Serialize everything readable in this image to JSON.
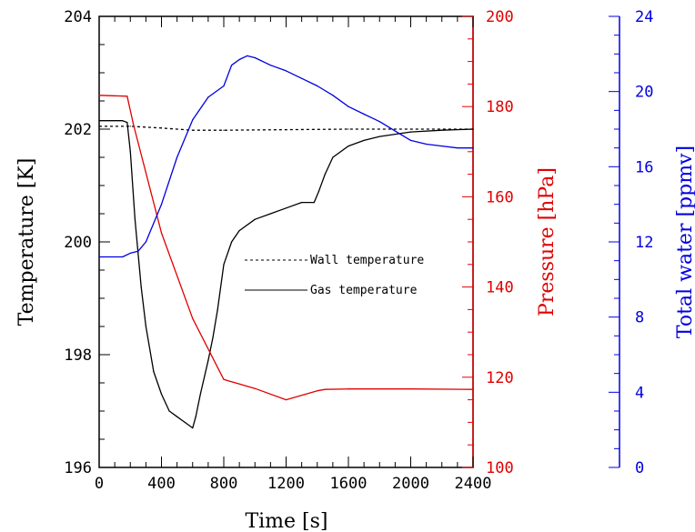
{
  "chart_data": {
    "type": "line",
    "xlabel": "Time [s]",
    "xlim": [
      0,
      2400
    ],
    "x_ticks": [
      "0",
      "400",
      "800",
      "1200",
      "1600",
      "2000",
      "2400"
    ],
    "axes": {
      "temperature": {
        "label": "Temperature [K]",
        "ylim": [
          196,
          204
        ],
        "ticks": [
          "196",
          "198",
          "200",
          "202",
          "204"
        ],
        "color": "#000000"
      },
      "pressure": {
        "label": "Pressure [hPa]",
        "ylim": [
          100,
          200
        ],
        "ticks": [
          "100",
          "120",
          "140",
          "160",
          "180",
          "200"
        ],
        "color": "#e00000"
      },
      "water": {
        "label": "Total water [ppmv]",
        "ylim": [
          0,
          24
        ],
        "ticks": [
          "0",
          "4",
          "8",
          "12",
          "16",
          "20",
          "24"
        ],
        "color": "#0000e0"
      }
    },
    "legend_position": "center",
    "series": [
      {
        "name": "Wall temperature",
        "axis": "temperature",
        "style": "dashed",
        "color": "#000000",
        "x": [
          0,
          200,
          400,
          600,
          800,
          1200,
          1600,
          2000,
          2400
        ],
        "y": [
          202.05,
          202.05,
          202.02,
          201.98,
          201.98,
          201.99,
          202.0,
          202.0,
          202.0
        ]
      },
      {
        "name": "Gas temperature",
        "axis": "temperature",
        "style": "solid",
        "color": "#000000",
        "x": [
          0,
          150,
          180,
          200,
          230,
          270,
          300,
          350,
          400,
          450,
          500,
          550,
          600,
          620,
          650,
          700,
          730,
          760,
          800,
          850,
          900,
          1000,
          1100,
          1200,
          1300,
          1380,
          1410,
          1450,
          1500,
          1600,
          1700,
          1800,
          2000,
          2200,
          2400
        ],
        "y": [
          202.15,
          202.15,
          202.12,
          201.6,
          200.4,
          199.2,
          198.5,
          197.7,
          197.3,
          197.0,
          196.9,
          196.8,
          196.7,
          196.9,
          197.3,
          197.9,
          198.3,
          198.8,
          199.6,
          200.0,
          200.2,
          200.4,
          200.5,
          200.6,
          200.7,
          200.7,
          200.9,
          201.2,
          201.5,
          201.7,
          201.8,
          201.87,
          201.95,
          201.98,
          202.0
        ]
      },
      {
        "name": "Pressure",
        "axis": "pressure",
        "style": "solid",
        "color": "#e00000",
        "x": [
          0,
          180,
          220,
          400,
          600,
          800,
          1000,
          1200,
          1400,
          1450,
          1600,
          2000,
          2400
        ],
        "y": [
          182.5,
          182.3,
          176,
          152,
          133,
          119.5,
          117.5,
          115,
          117,
          117.3,
          117.4,
          117.4,
          117.3
        ]
      },
      {
        "name": "Total water",
        "axis": "water",
        "style": "solid",
        "color": "#0000e0",
        "x": [
          0,
          150,
          200,
          250,
          300,
          400,
          500,
          600,
          700,
          800,
          850,
          900,
          950,
          1000,
          1100,
          1200,
          1300,
          1400,
          1500,
          1600,
          1700,
          1800,
          1900,
          2000,
          2100,
          2200,
          2300,
          2400
        ],
        "y": [
          11.2,
          11.2,
          11.4,
          11.5,
          12.0,
          14.0,
          16.5,
          18.5,
          19.7,
          20.3,
          21.4,
          21.7,
          21.9,
          21.8,
          21.4,
          21.1,
          20.7,
          20.3,
          19.8,
          19.2,
          18.8,
          18.4,
          17.9,
          17.4,
          17.2,
          17.1,
          17.0,
          17.0
        ]
      }
    ]
  }
}
